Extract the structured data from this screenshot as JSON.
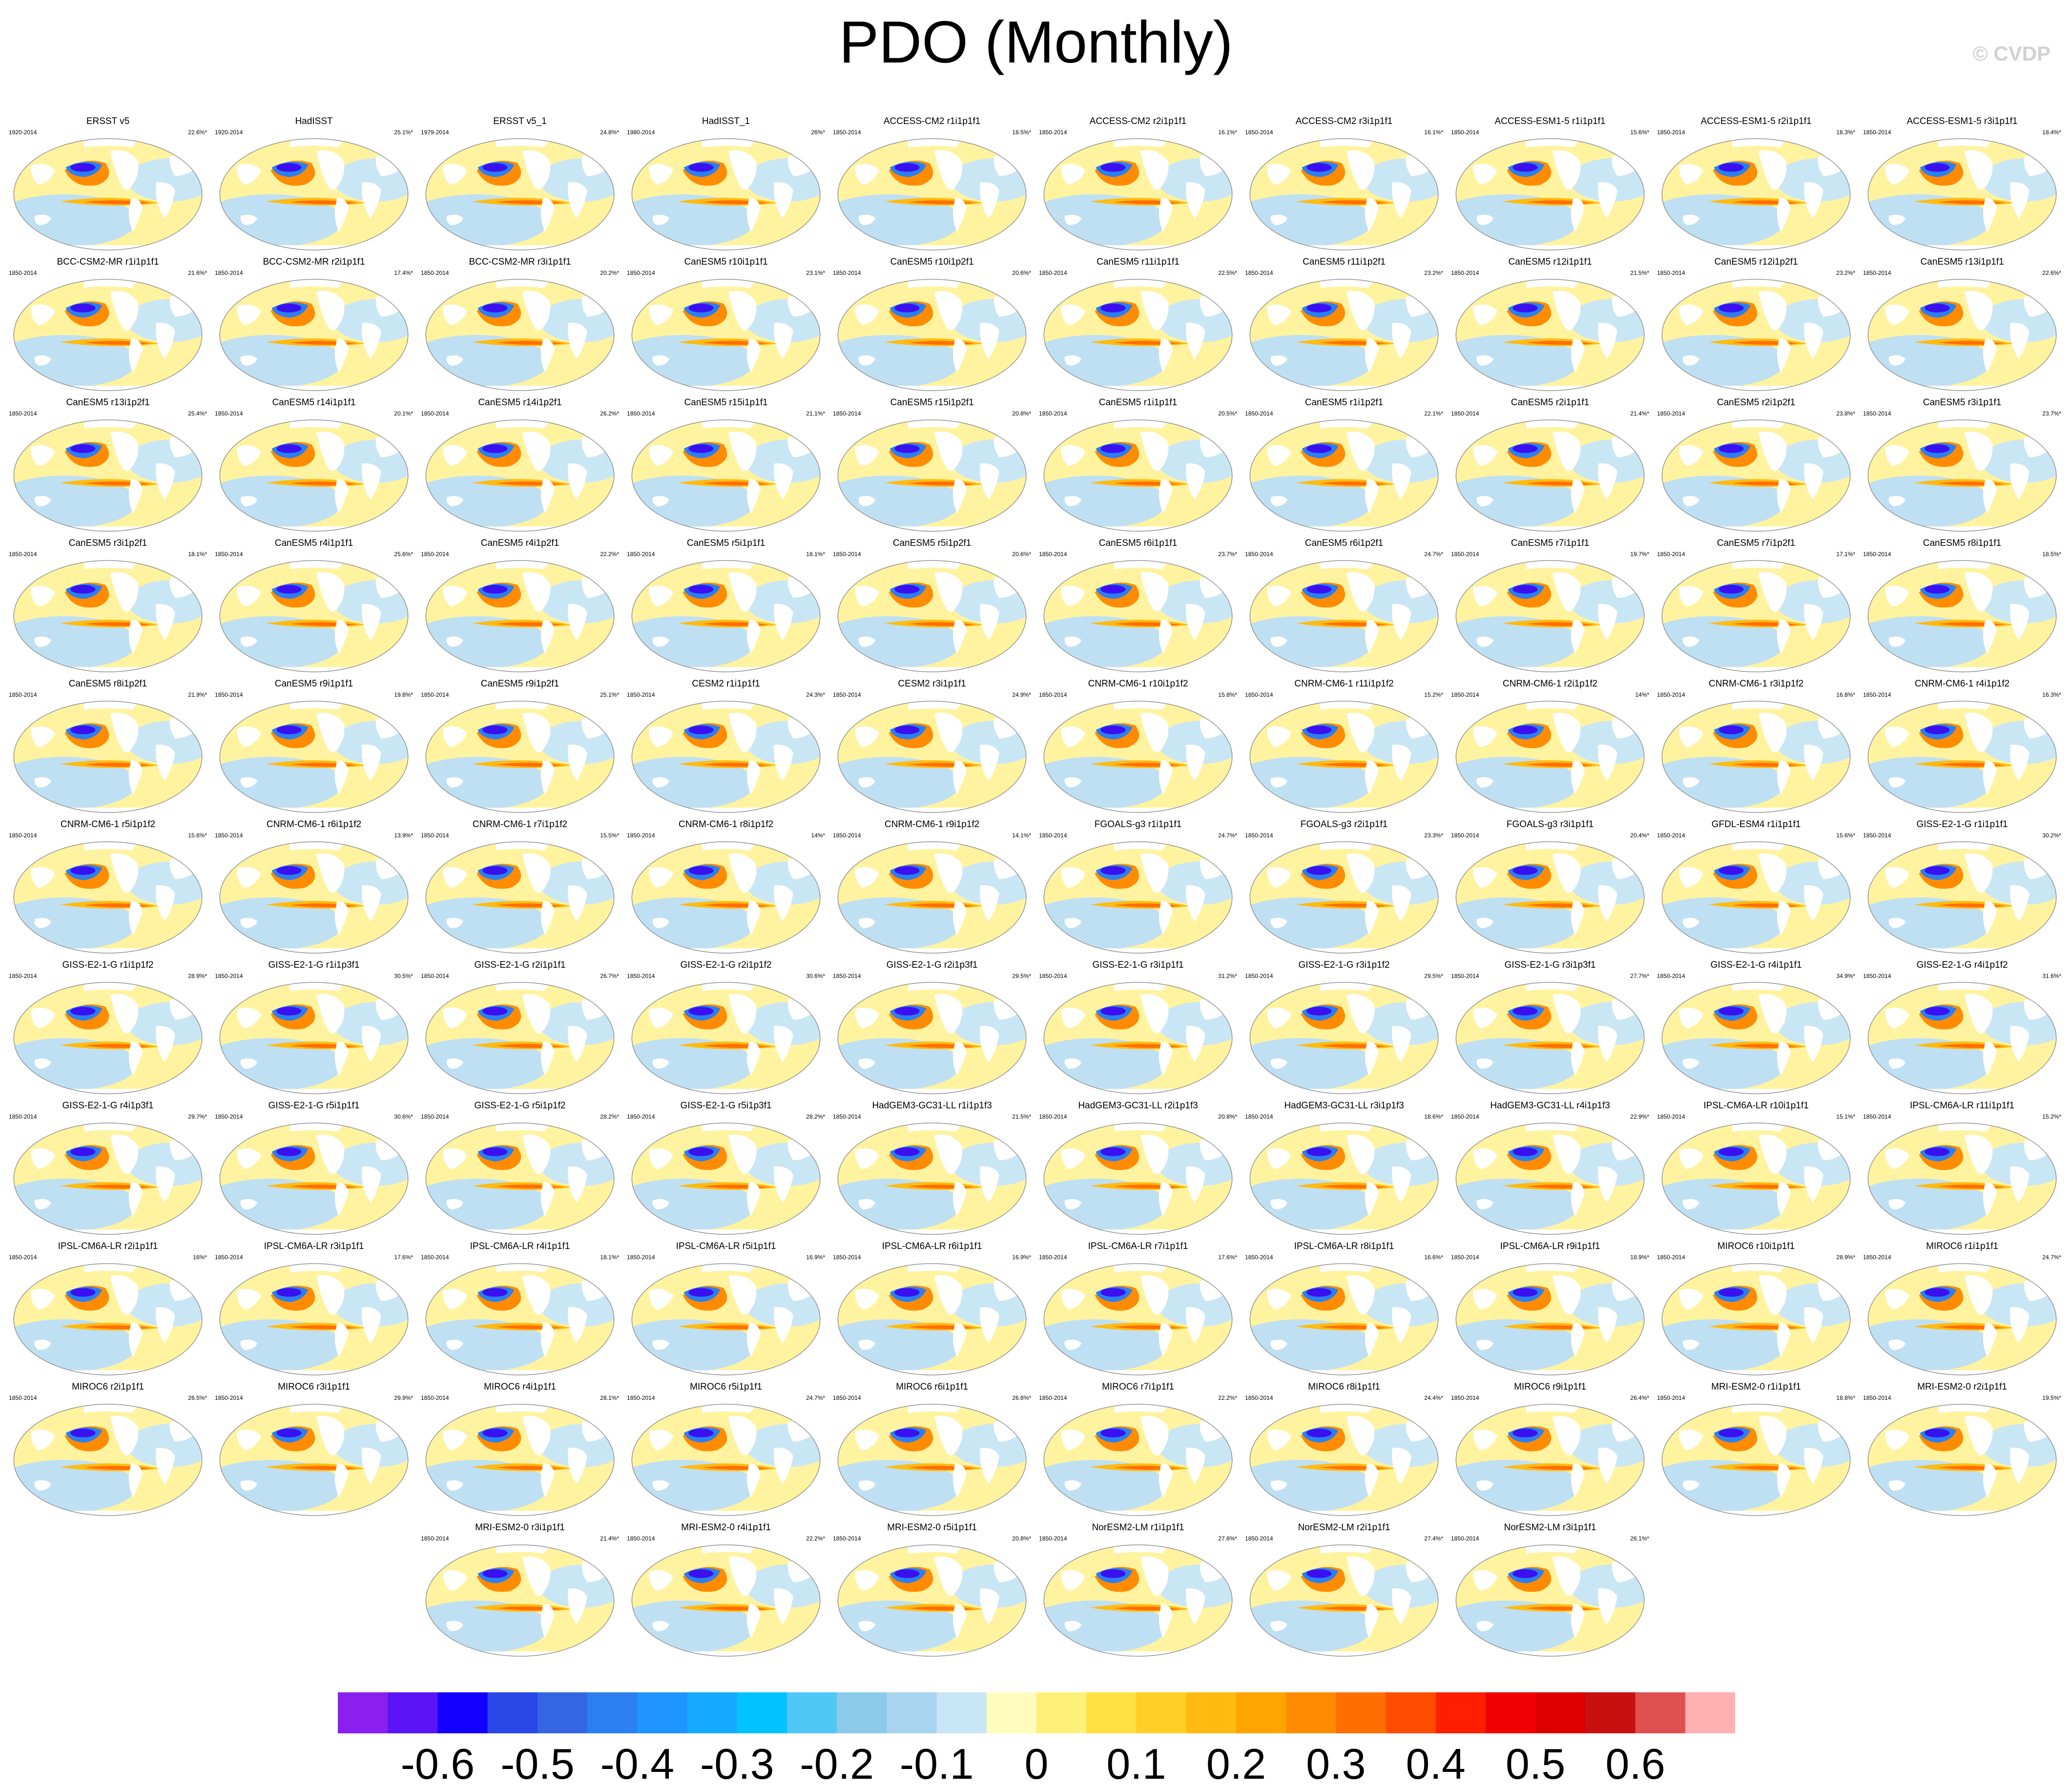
{
  "title": "PDO (Monthly)",
  "watermark": "© CVDP",
  "colorbar": {
    "colors": [
      "#8a1ff0",
      "#5a14f5",
      "#1400ff",
      "#2848e8",
      "#3466e4",
      "#2b7ff0",
      "#1f95ff",
      "#15aaff",
      "#00c3ff",
      "#50c8f7",
      "#8ccaeb",
      "#a8d6f0",
      "#c8e6f5",
      "#fffcbe",
      "#fff07a",
      "#ffe040",
      "#ffcf28",
      "#ffbb10",
      "#ffa400",
      "#ff8c00",
      "#ff6e00",
      "#ff4d00",
      "#ff1e00",
      "#f00000",
      "#dc0000",
      "#c81010",
      "#e05050",
      "#ffb0b0"
    ],
    "labels": [
      "-0.6",
      "-0.5",
      "-0.4",
      "-0.3",
      "-0.2",
      "-0.1",
      "0",
      "0.1",
      "0.2",
      "0.3",
      "0.4",
      "0.5",
      "0.6"
    ]
  },
  "panels": [
    {
      "name": "ERSST v5",
      "years": "1920-2014",
      "pct": "22.6%*"
    },
    {
      "name": "HadISST",
      "years": "1920-2014",
      "pct": "25.1%*"
    },
    {
      "name": "ERSST v5_1",
      "years": "1979-2014",
      "pct": "24.8%*"
    },
    {
      "name": "HadISST_1",
      "years": "1980-2014",
      "pct": "26%*"
    },
    {
      "name": "ACCESS-CM2 r1i1p1f1",
      "years": "1850-2014",
      "pct": "18.5%*"
    },
    {
      "name": "ACCESS-CM2 r2i1p1f1",
      "years": "1850-2014",
      "pct": "16.1%*"
    },
    {
      "name": "ACCESS-CM2 r3i1p1f1",
      "years": "1850-2014",
      "pct": "16.1%*"
    },
    {
      "name": "ACCESS-ESM1-5 r1i1p1f1",
      "years": "1850-2014",
      "pct": "15.6%*"
    },
    {
      "name": "ACCESS-ESM1-5 r2i1p1f1",
      "years": "1850-2014",
      "pct": "18.3%*"
    },
    {
      "name": "ACCESS-ESM1-5 r3i1p1f1",
      "years": "1850-2014",
      "pct": "18.4%*"
    },
    {
      "name": "BCC-CSM2-MR r1i1p1f1",
      "years": "1850-2014",
      "pct": "21.6%*"
    },
    {
      "name": "BCC-CSM2-MR r2i1p1f1",
      "years": "1850-2014",
      "pct": "17.4%*"
    },
    {
      "name": "BCC-CSM2-MR r3i1p1f1",
      "years": "1850-2014",
      "pct": "20.2%*"
    },
    {
      "name": "CanESM5 r10i1p1f1",
      "years": "1850-2014",
      "pct": "23.1%*"
    },
    {
      "name": "CanESM5 r10i1p2f1",
      "years": "1850-2014",
      "pct": "20.6%*"
    },
    {
      "name": "CanESM5 r11i1p1f1",
      "years": "1850-2014",
      "pct": "22.5%*"
    },
    {
      "name": "CanESM5 r11i1p2f1",
      "years": "1850-2014",
      "pct": "23.2%*"
    },
    {
      "name": "CanESM5 r12i1p1f1",
      "years": "1850-2014",
      "pct": "21.5%*"
    },
    {
      "name": "CanESM5 r12i1p2f1",
      "years": "1850-2014",
      "pct": "23.2%*"
    },
    {
      "name": "CanESM5 r13i1p1f1",
      "years": "1850-2014",
      "pct": "22.6%*"
    },
    {
      "name": "CanESM5 r13i1p2f1",
      "years": "1850-2014",
      "pct": "25.4%*"
    },
    {
      "name": "CanESM5 r14i1p1f1",
      "years": "1850-2014",
      "pct": "20.1%*"
    },
    {
      "name": "CanESM5 r14i1p2f1",
      "years": "1850-2014",
      "pct": "26.2%*"
    },
    {
      "name": "CanESM5 r15i1p1f1",
      "years": "1850-2014",
      "pct": "21.1%*"
    },
    {
      "name": "CanESM5 r15i1p2f1",
      "years": "1850-2014",
      "pct": "20.8%*"
    },
    {
      "name": "CanESM5 r1i1p1f1",
      "years": "1850-2014",
      "pct": "20.5%*"
    },
    {
      "name": "CanESM5 r1i1p2f1",
      "years": "1850-2014",
      "pct": "22.1%*"
    },
    {
      "name": "CanESM5 r2i1p1f1",
      "years": "1850-2014",
      "pct": "21.4%*"
    },
    {
      "name": "CanESM5 r2i1p2f1",
      "years": "1850-2014",
      "pct": "23.8%*"
    },
    {
      "name": "CanESM5 r3i1p1f1",
      "years": "1850-2014",
      "pct": "23.7%*"
    },
    {
      "name": "CanESM5 r3i1p2f1",
      "years": "1850-2014",
      "pct": "18.1%*"
    },
    {
      "name": "CanESM5 r4i1p1f1",
      "years": "1850-2014",
      "pct": "25.6%*"
    },
    {
      "name": "CanESM5 r4i1p2f1",
      "years": "1850-2014",
      "pct": "22.2%*"
    },
    {
      "name": "CanESM5 r5i1p1f1",
      "years": "1850-2014",
      "pct": "18.1%*"
    },
    {
      "name": "CanESM5 r5i1p2f1",
      "years": "1850-2014",
      "pct": "20.6%*"
    },
    {
      "name": "CanESM5 r6i1p1f1",
      "years": "1850-2014",
      "pct": "23.7%*"
    },
    {
      "name": "CanESM5 r6i1p2f1",
      "years": "1850-2014",
      "pct": "24.7%*"
    },
    {
      "name": "CanESM5 r7i1p1f1",
      "years": "1850-2014",
      "pct": "19.7%*"
    },
    {
      "name": "CanESM5 r7i1p2f1",
      "years": "1850-2014",
      "pct": "17.1%*"
    },
    {
      "name": "CanESM5 r8i1p1f1",
      "years": "1850-2014",
      "pct": "18.5%*"
    },
    {
      "name": "CanESM5 r8i1p2f1",
      "years": "1850-2014",
      "pct": "21.9%*"
    },
    {
      "name": "CanESM5 r9i1p1f1",
      "years": "1850-2014",
      "pct": "19.8%*"
    },
    {
      "name": "CanESM5 r9i1p2f1",
      "years": "1850-2014",
      "pct": "25.1%*"
    },
    {
      "name": "CESM2 r1i1p1f1",
      "years": "1850-2014",
      "pct": "24.3%*"
    },
    {
      "name": "CESM2 r3i1p1f1",
      "years": "1850-2014",
      "pct": "24.9%*"
    },
    {
      "name": "CNRM-CM6-1 r10i1p1f2",
      "years": "1850-2014",
      "pct": "15.8%*"
    },
    {
      "name": "CNRM-CM6-1 r11i1p1f2",
      "years": "1850-2014",
      "pct": "15.2%*"
    },
    {
      "name": "CNRM-CM6-1 r2i1p1f2",
      "years": "1850-2014",
      "pct": "14%*"
    },
    {
      "name": "CNRM-CM6-1 r3i1p1f2",
      "years": "1850-2014",
      "pct": "16.8%*"
    },
    {
      "name": "CNRM-CM6-1 r4i1p1f2",
      "years": "1850-2014",
      "pct": "16.3%*"
    },
    {
      "name": "CNRM-CM6-1 r5i1p1f2",
      "years": "1850-2014",
      "pct": "15.6%*"
    },
    {
      "name": "CNRM-CM6-1 r6i1p1f2",
      "years": "1850-2014",
      "pct": "13.9%*"
    },
    {
      "name": "CNRM-CM6-1 r7i1p1f2",
      "years": "1850-2014",
      "pct": "15.5%*"
    },
    {
      "name": "CNRM-CM6-1 r8i1p1f2",
      "years": "1850-2014",
      "pct": "14%*"
    },
    {
      "name": "CNRM-CM6-1 r9i1p1f2",
      "years": "1850-2014",
      "pct": "14.1%*"
    },
    {
      "name": "FGOALS-g3 r1i1p1f1",
      "years": "1850-2014",
      "pct": "24.7%*"
    },
    {
      "name": "FGOALS-g3 r2i1p1f1",
      "years": "1850-2014",
      "pct": "23.3%*"
    },
    {
      "name": "FGOALS-g3 r3i1p1f1",
      "years": "1850-2014",
      "pct": "20.4%*"
    },
    {
      "name": "GFDL-ESM4 r1i1p1f1",
      "years": "1850-2014",
      "pct": "15.6%*"
    },
    {
      "name": "GISS-E2-1-G r1i1p1f1",
      "years": "1850-2014",
      "pct": "30.2%*"
    },
    {
      "name": "GISS-E2-1-G r1i1p1f2",
      "years": "1850-2014",
      "pct": "28.9%*"
    },
    {
      "name": "GISS-E2-1-G r1i1p3f1",
      "years": "1850-2014",
      "pct": "30.5%*"
    },
    {
      "name": "GISS-E2-1-G r2i1p1f1",
      "years": "1850-2014",
      "pct": "26.7%*"
    },
    {
      "name": "GISS-E2-1-G r2i1p1f2",
      "years": "1850-2014",
      "pct": "30.6%*"
    },
    {
      "name": "GISS-E2-1-G r2i1p3f1",
      "years": "1850-2014",
      "pct": "29.5%*"
    },
    {
      "name": "GISS-E2-1-G r3i1p1f1",
      "years": "1850-2014",
      "pct": "31.2%*"
    },
    {
      "name": "GISS-E2-1-G r3i1p1f2",
      "years": "1850-2014",
      "pct": "29.5%*"
    },
    {
      "name": "GISS-E2-1-G r3i1p3f1",
      "years": "1850-2014",
      "pct": "27.7%*"
    },
    {
      "name": "GISS-E2-1-G r4i1p1f1",
      "years": "1850-2014",
      "pct": "34.9%*"
    },
    {
      "name": "GISS-E2-1-G r4i1p1f2",
      "years": "1850-2014",
      "pct": "31.6%*"
    },
    {
      "name": "GISS-E2-1-G r4i1p3f1",
      "years": "1850-2014",
      "pct": "29.7%*"
    },
    {
      "name": "GISS-E2-1-G r5i1p1f1",
      "years": "1850-2014",
      "pct": "30.6%*"
    },
    {
      "name": "GISS-E2-1-G r5i1p1f2",
      "years": "1850-2014",
      "pct": "28.2%*"
    },
    {
      "name": "GISS-E2-1-G r5i1p3f1",
      "years": "1850-2014",
      "pct": "28.2%*"
    },
    {
      "name": "HadGEM3-GC31-LL r1i1p1f3",
      "years": "1850-2014",
      "pct": "21.5%*"
    },
    {
      "name": "HadGEM3-GC31-LL r2i1p1f3",
      "years": "1850-2014",
      "pct": "20.8%*"
    },
    {
      "name": "HadGEM3-GC31-LL r3i1p1f3",
      "years": "1850-2014",
      "pct": "18.6%*"
    },
    {
      "name": "HadGEM3-GC31-LL r4i1p1f3",
      "years": "1850-2014",
      "pct": "22.9%*"
    },
    {
      "name": "IPSL-CM6A-LR r10i1p1f1",
      "years": "1850-2014",
      "pct": "15.1%*"
    },
    {
      "name": "IPSL-CM6A-LR r11i1p1f1",
      "years": "1850-2014",
      "pct": "15.2%*"
    },
    {
      "name": "IPSL-CM6A-LR r2i1p1f1",
      "years": "1850-2014",
      "pct": "16%*"
    },
    {
      "name": "IPSL-CM6A-LR r3i1p1f1",
      "years": "1850-2014",
      "pct": "17.6%*"
    },
    {
      "name": "IPSL-CM6A-LR r4i1p1f1",
      "years": "1850-2014",
      "pct": "18.1%*"
    },
    {
      "name": "IPSL-CM6A-LR r5i1p1f1",
      "years": "1850-2014",
      "pct": "16.9%*"
    },
    {
      "name": "IPSL-CM6A-LR r6i1p1f1",
      "years": "1850-2014",
      "pct": "16.9%*"
    },
    {
      "name": "IPSL-CM6A-LR r7i1p1f1",
      "years": "1850-2014",
      "pct": "17.6%*"
    },
    {
      "name": "IPSL-CM6A-LR r8i1p1f1",
      "years": "1850-2014",
      "pct": "16.6%*"
    },
    {
      "name": "IPSL-CM6A-LR r9i1p1f1",
      "years": "1850-2014",
      "pct": "18.9%*"
    },
    {
      "name": "MIROC6 r10i1p1f1",
      "years": "1850-2014",
      "pct": "28.9%*"
    },
    {
      "name": "MIROC6 r1i1p1f1",
      "years": "1850-2014",
      "pct": "24.7%*"
    },
    {
      "name": "MIROC6 r2i1p1f1",
      "years": "1850-2014",
      "pct": "26.5%*"
    },
    {
      "name": "MIROC6 r3i1p1f1",
      "years": "1850-2014",
      "pct": "29.9%*"
    },
    {
      "name": "MIROC6 r4i1p1f1",
      "years": "1850-2014",
      "pct": "28.1%*"
    },
    {
      "name": "MIROC6 r5i1p1f1",
      "years": "1850-2014",
      "pct": "24.7%*"
    },
    {
      "name": "MIROC6 r6i1p1f1",
      "years": "1850-2014",
      "pct": "26.6%*"
    },
    {
      "name": "MIROC6 r7i1p1f1",
      "years": "1850-2014",
      "pct": "22.2%*"
    },
    {
      "name": "MIROC6 r8i1p1f1",
      "years": "1850-2014",
      "pct": "24.4%*"
    },
    {
      "name": "MIROC6 r9i1p1f1",
      "years": "1850-2014",
      "pct": "26.4%*"
    },
    {
      "name": "MRI-ESM2-0 r1i1p1f1",
      "years": "1850-2014",
      "pct": "18.8%*"
    },
    {
      "name": "MRI-ESM2-0 r2i1p1f1",
      "years": "1850-2014",
      "pct": "19.5%*"
    },
    {
      "name": "MRI-ESM2-0 r3i1p1f1",
      "years": "1850-2014",
      "pct": "21.4%*"
    },
    {
      "name": "MRI-ESM2-0 r4i1p1f1",
      "years": "1850-2014",
      "pct": "22.2%*"
    },
    {
      "name": "MRI-ESM2-0 r5i1p1f1",
      "years": "1850-2014",
      "pct": "20.8%*"
    },
    {
      "name": "NorESM2-LM r1i1p1f1",
      "years": "1850-2014",
      "pct": "27.6%*"
    },
    {
      "name": "NorESM2-LM r2i1p1f1",
      "years": "1850-2014",
      "pct": "27.4%*"
    },
    {
      "name": "NorESM2-LM r3i1p1f1",
      "years": "1850-2014",
      "pct": "26.1%*"
    }
  ]
}
